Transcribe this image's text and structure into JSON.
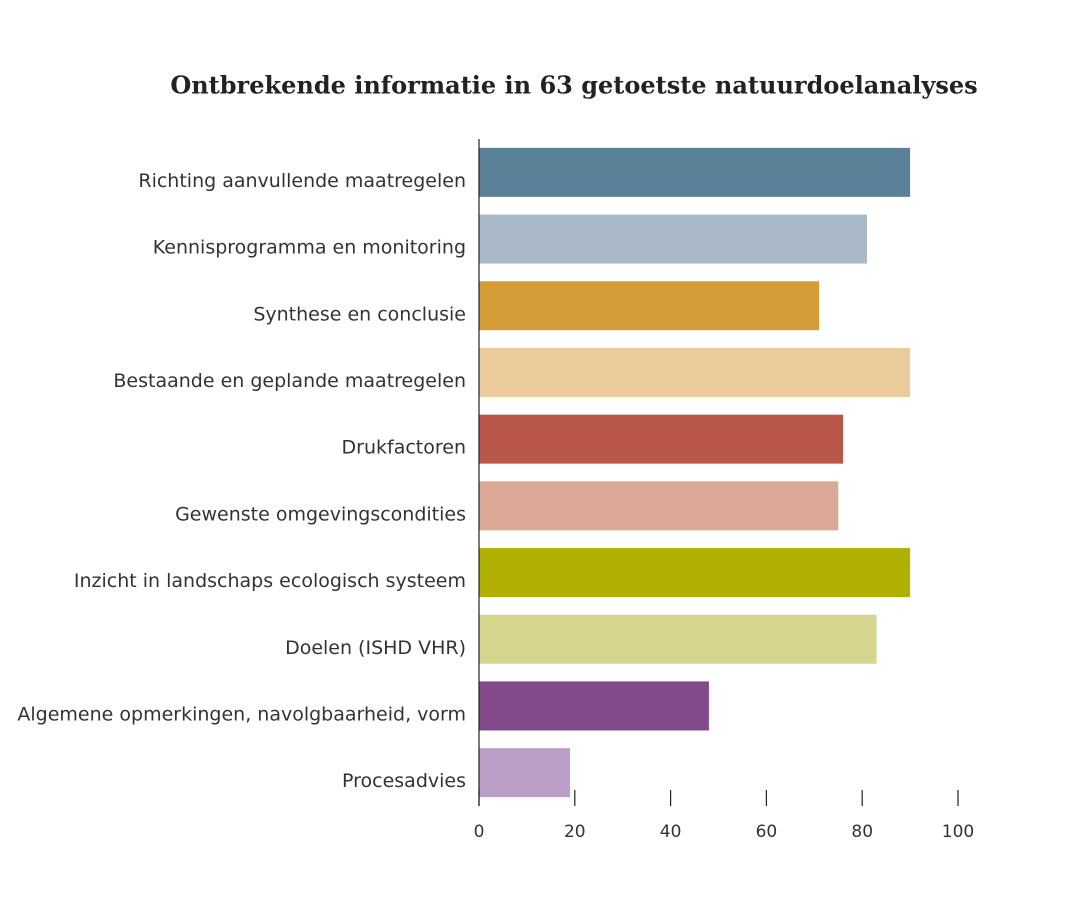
{
  "chart_data": {
    "type": "bar",
    "orientation": "horizontal",
    "title": "Ontbrekende informatie in 63 getoetste natuurdoelanalyses",
    "categories": [
      "Richting aanvullende maatregelen",
      "Kennisprogramma en monitoring",
      "Synthese en conclusie",
      "Bestaande en geplande maatregelen",
      "Drukfactoren",
      "Gewenste omgevingscondities",
      "Inzicht in landschaps ecologisch systeem",
      "Doelen (ISHD VHR)",
      "Algemene opmerkingen, navolgbaarheid, vorm",
      "Procesadvies"
    ],
    "values": [
      90,
      81,
      71,
      90,
      76,
      75,
      90,
      83,
      48,
      19
    ],
    "colors": [
      "#5b8199",
      "#a9b9c7",
      "#d49d38",
      "#eacb9b",
      "#b9584a",
      "#dba896",
      "#afb000",
      "#d5d58e",
      "#84498a",
      "#bb9ec6"
    ],
    "xlim": [
      0,
      100
    ],
    "xticks": [
      0,
      20,
      40,
      60,
      80,
      100
    ],
    "grid": false
  }
}
